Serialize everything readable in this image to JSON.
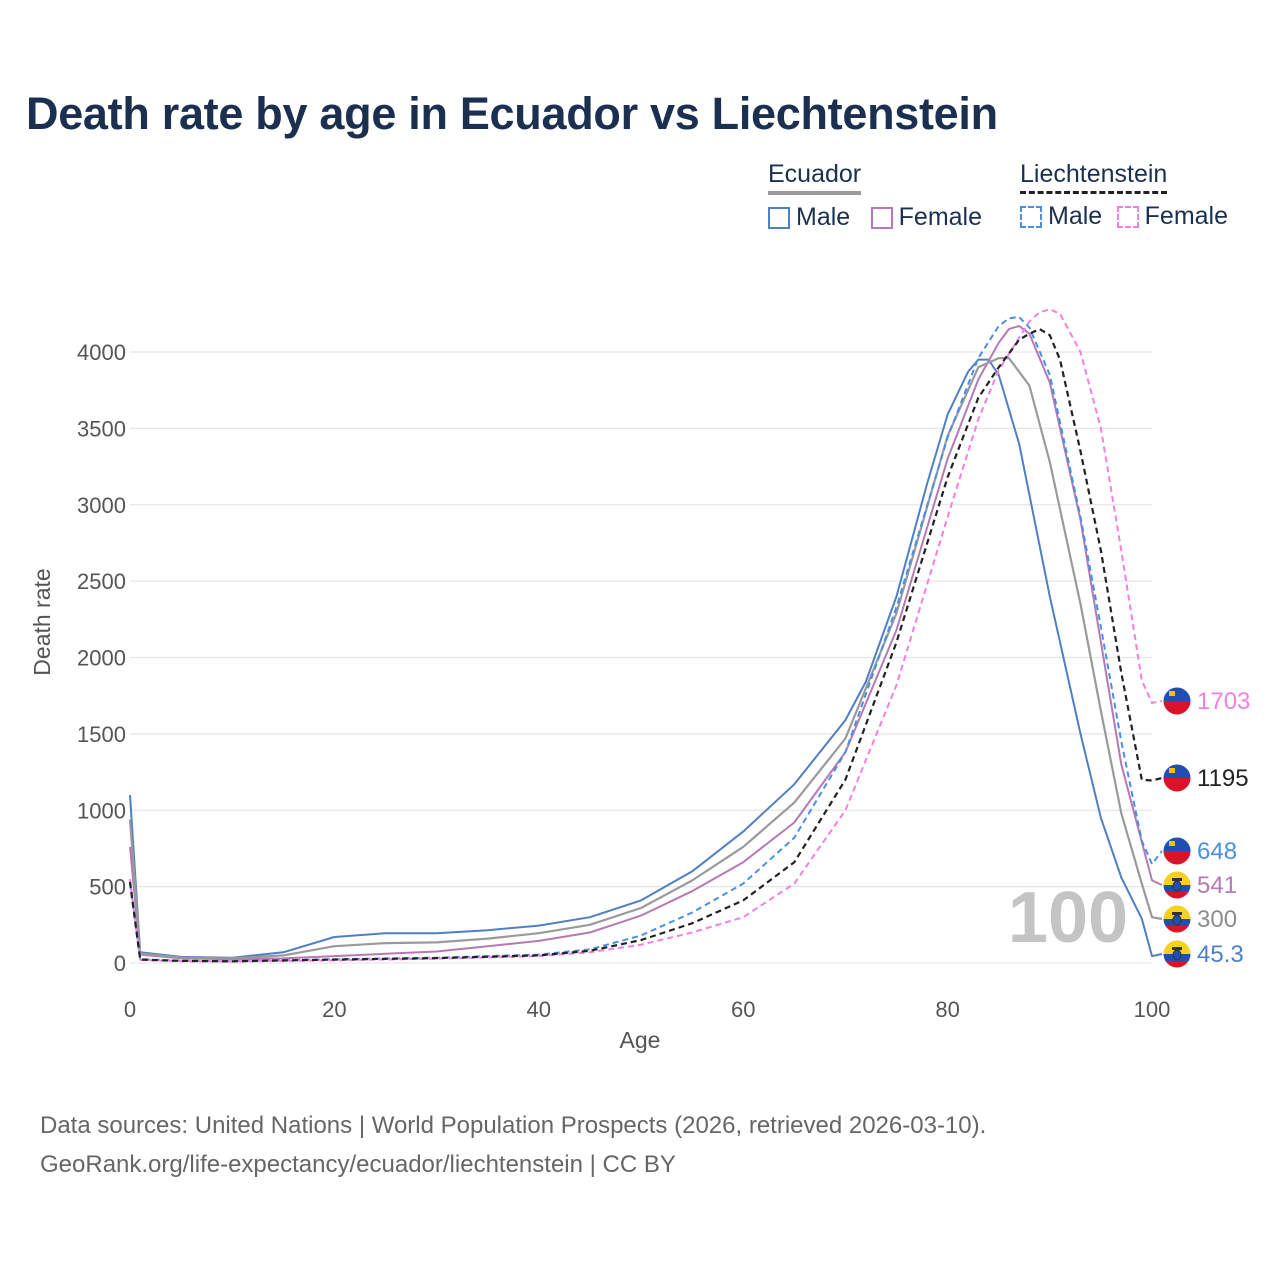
{
  "title": "Death rate by age in Ecuador vs Liechtenstein",
  "legend": {
    "ecuador": {
      "label": "Ecuador",
      "male": "Male",
      "female": "Female"
    },
    "liechtenstein": {
      "label": "Liechtenstein",
      "male": "Male",
      "female": "Female"
    }
  },
  "colors": {
    "ecuador_male": "#4f7fc4",
    "ecuador_female": "#b57ab5",
    "ecuador_total": "#9a9a9a",
    "liechtenstein_male": "#4a90e2",
    "liechtenstein_female": "#f57fe0",
    "liechtenstein_total": "#222222"
  },
  "watermark": "100",
  "source": {
    "line1": "Data sources: United Nations | World Population Prospects (2026, retrieved 2026-03-10).",
    "line2": "GeoRank.org/life-expectancy/ecuador/liechtenstein | CC BY"
  },
  "chart_data": {
    "type": "line",
    "xlabel": "Age",
    "ylabel": "Death rate",
    "xlim": [
      0,
      100
    ],
    "ylim": [
      0,
      4000
    ],
    "xticks": [
      0,
      20,
      40,
      60,
      80,
      100
    ],
    "yticks": [
      0,
      500,
      1000,
      1500,
      2000,
      2500,
      3000,
      3500,
      4000
    ],
    "grid": true,
    "series": [
      {
        "id": "ecuador_male",
        "name": "Ecuador Male",
        "country": "Ecuador",
        "dash": false,
        "x": [
          0,
          1,
          5,
          10,
          15,
          20,
          25,
          30,
          35,
          40,
          45,
          50,
          55,
          60,
          65,
          70,
          72,
          75,
          78,
          80,
          82,
          83,
          84,
          85,
          87,
          90,
          93,
          95,
          97,
          99,
          100
        ],
        "y": [
          1100,
          70,
          40,
          35,
          70,
          170,
          195,
          195,
          215,
          245,
          300,
          410,
          600,
          860,
          1170,
          1590,
          1840,
          2400,
          3140,
          3590,
          3870,
          3950,
          3950,
          3850,
          3400,
          2400,
          1500,
          950,
          560,
          290,
          45.3
        ],
        "end_label": "45.3"
      },
      {
        "id": "ecuador_female",
        "name": "Ecuador Female",
        "country": "Ecuador",
        "dash": false,
        "x": [
          0,
          1,
          5,
          10,
          15,
          20,
          25,
          30,
          35,
          40,
          45,
          50,
          55,
          60,
          65,
          70,
          75,
          80,
          83,
          85,
          86,
          87,
          88,
          90,
          93,
          95,
          97,
          100
        ],
        "y": [
          760,
          55,
          30,
          25,
          30,
          45,
          60,
          75,
          110,
          145,
          200,
          310,
          470,
          660,
          920,
          1380,
          2180,
          3300,
          3820,
          4060,
          4150,
          4170,
          4120,
          3800,
          2900,
          2100,
          1300,
          541
        ],
        "end_label": "541"
      },
      {
        "id": "ecuador_total",
        "name": "Ecuador",
        "country": "Ecuador",
        "dash": false,
        "x": [
          0,
          1,
          5,
          10,
          15,
          20,
          25,
          30,
          35,
          40,
          45,
          50,
          55,
          60,
          65,
          70,
          75,
          80,
          83,
          85,
          86,
          88,
          90,
          93,
          95,
          97,
          99,
          100
        ],
        "y": [
          940,
          62,
          35,
          30,
          50,
          110,
          130,
          135,
          160,
          195,
          250,
          360,
          540,
          760,
          1050,
          1470,
          2290,
          3450,
          3900,
          3960,
          3960,
          3780,
          3280,
          2350,
          1650,
          980,
          520,
          300
        ],
        "end_label": "300"
      },
      {
        "id": "liechtenstein_male",
        "name": "Liechtenstein Male",
        "country": "Liechtenstein",
        "dash": true,
        "x": [
          0,
          1,
          5,
          10,
          20,
          30,
          40,
          45,
          50,
          55,
          60,
          65,
          70,
          75,
          80,
          83,
          85,
          86,
          87,
          88,
          90,
          93,
          95,
          97,
          99,
          100
        ],
        "y": [
          520,
          25,
          15,
          12,
          25,
          35,
          55,
          90,
          180,
          330,
          520,
          820,
          1380,
          2330,
          3440,
          3960,
          4170,
          4220,
          4230,
          4160,
          3850,
          2920,
          2200,
          1450,
          800,
          648
        ],
        "end_label": "648"
      },
      {
        "id": "liechtenstein_female",
        "name": "Liechtenstein Female",
        "country": "Liechtenstein",
        "dash": true,
        "x": [
          0,
          1,
          5,
          10,
          20,
          30,
          40,
          45,
          50,
          55,
          60,
          65,
          70,
          75,
          80,
          83,
          85,
          88,
          89,
          90,
          91,
          93,
          95,
          97,
          99,
          100
        ],
        "y": [
          550,
          20,
          12,
          10,
          18,
          28,
          45,
          70,
          120,
          200,
          300,
          520,
          1000,
          1820,
          2920,
          3560,
          3880,
          4200,
          4260,
          4280,
          4250,
          4000,
          3500,
          2700,
          1850,
          1703
        ],
        "end_label": "1703"
      },
      {
        "id": "liechtenstein_total",
        "name": "Liechtenstein",
        "country": "Liechtenstein",
        "dash": true,
        "x": [
          0,
          1,
          5,
          10,
          20,
          30,
          40,
          45,
          50,
          55,
          60,
          65,
          70,
          75,
          80,
          83,
          85,
          87,
          88,
          89,
          90,
          91,
          93,
          95,
          97,
          99,
          100
        ],
        "y": [
          530,
          22,
          14,
          11,
          22,
          32,
          50,
          80,
          150,
          260,
          410,
          660,
          1200,
          2100,
          3180,
          3700,
          3900,
          4080,
          4120,
          4150,
          4110,
          3950,
          3350,
          2700,
          1900,
          1200,
          1195
        ],
        "end_label": "1195"
      }
    ]
  }
}
